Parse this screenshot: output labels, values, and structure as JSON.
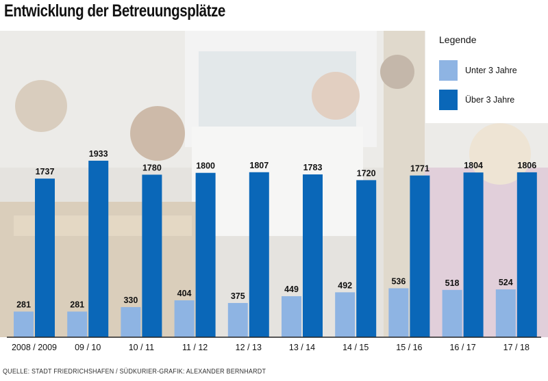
{
  "title": "Entwicklung der Betreuungsplätze",
  "source": "QUELLE: STADT FRIEDRICHSHAFEN / SÜDKURIER-GRAFIK: ALEXANDER BERNHARDT",
  "legend": {
    "title": "Legende",
    "items": [
      {
        "label": "Unter 3 Jahre",
        "color": "#8eb4e3"
      },
      {
        "label": "Über 3 Jahre",
        "color": "#0a67b8"
      }
    ]
  },
  "chart_data": {
    "type": "bar",
    "title": "Entwicklung der Betreuungsplätze",
    "categories": [
      "2008 / 2009",
      "09 / 10",
      "10 / 11",
      "11 / 12",
      "12 / 13",
      "13 / 14",
      "14 / 15",
      "15 / 16",
      "16 / 17",
      "17 / 18"
    ],
    "series": [
      {
        "name": "Unter 3 Jahre",
        "color": "#8eb4e3",
        "values": [
          281,
          281,
          330,
          404,
          375,
          449,
          492,
          536,
          518,
          524
        ]
      },
      {
        "name": "Über 3 Jahre",
        "color": "#0a67b8",
        "values": [
          1737,
          1933,
          1780,
          1800,
          1807,
          1783,
          1720,
          1771,
          1804,
          1806
        ]
      }
    ],
    "ylim": [
      0,
      2050
    ],
    "grid": false,
    "legend_position": "top-right"
  }
}
